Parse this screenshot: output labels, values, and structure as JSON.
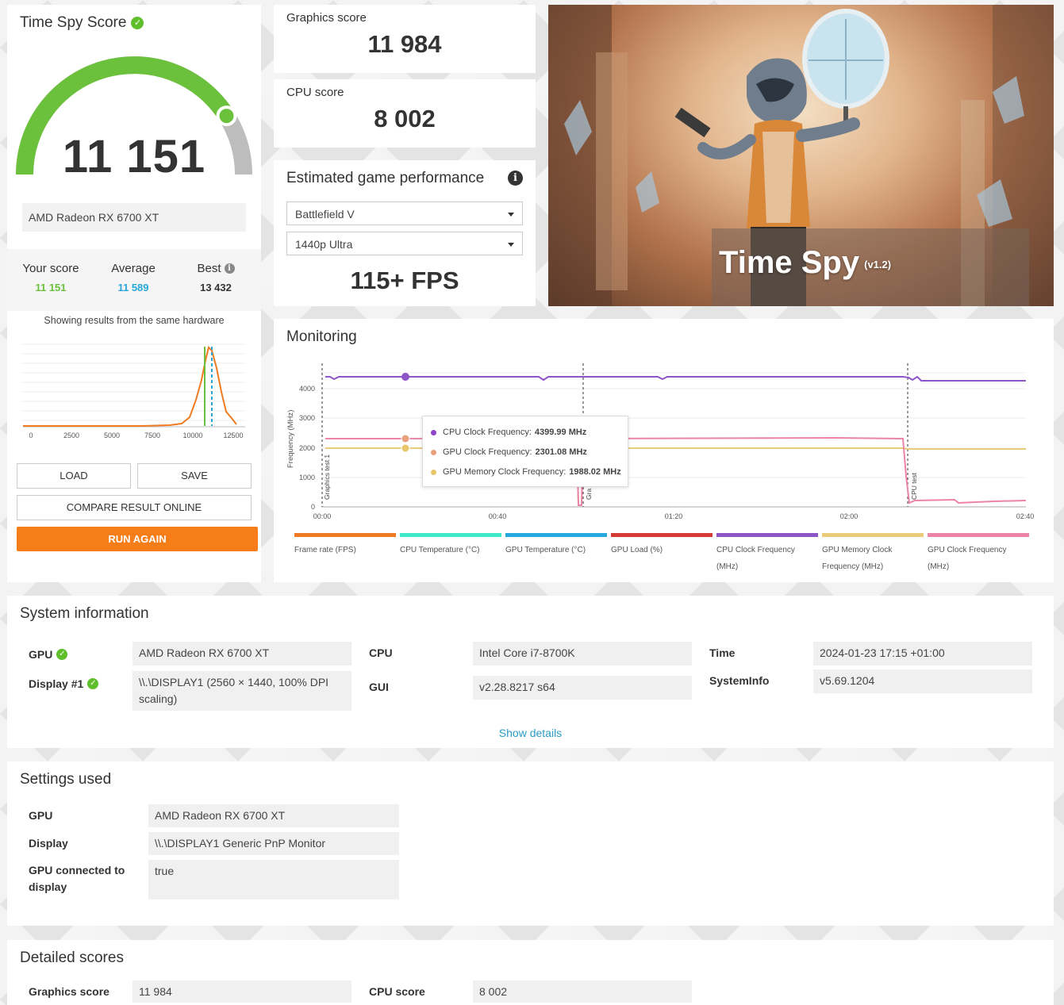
{
  "score_panel": {
    "title": "Time Spy Score",
    "score": "11 151",
    "gauge_fraction": 0.82,
    "gpu": "AMD Radeon RX 6700 XT",
    "your_score_label": "Your score",
    "your_score": "11 151",
    "average_label": "Average",
    "average": "11 589",
    "best_label": "Best",
    "best": "13 432",
    "same_hardware_text": "Showing results from the same hardware",
    "buttons": {
      "load": "LOAD",
      "save": "SAVE",
      "compare": "COMPARE RESULT ONLINE",
      "run_again": "RUN AGAIN"
    },
    "colors": {
      "green": "#6cc13c",
      "blue": "#2aa5d8",
      "orange": "#f77d19",
      "gauge_gray": "#bdbdbd"
    }
  },
  "graphics_score": {
    "label": "Graphics score",
    "value": "11 984"
  },
  "cpu_score": {
    "label": "CPU score",
    "value": "8 002"
  },
  "estimated": {
    "title": "Estimated game performance",
    "game": "Battlefield V",
    "preset": "1440p Ultra",
    "fps": "115+ FPS"
  },
  "hero": {
    "title": "Time Spy",
    "version": "(v1.2)"
  },
  "monitoring": {
    "title": "Monitoring",
    "tooltip": [
      {
        "label": "CPU Clock Frequency:",
        "value": "4399.99 MHz",
        "color": "#8e44c9"
      },
      {
        "label": "GPU Clock Frequency:",
        "value": "2301.08 MHz",
        "color": "#e8a17c"
      },
      {
        "label": "GPU Memory Clock Frequency:",
        "value": "1988.02 MHz",
        "color": "#e7c76a"
      }
    ],
    "legend": [
      {
        "label": "Frame rate (FPS)",
        "color": "#f07b22"
      },
      {
        "label": "CPU Temperature (°C)",
        "color": "#3ee8c8"
      },
      {
        "label": "GPU Temperature (°C)",
        "color": "#27a9e0"
      },
      {
        "label": "GPU Load (%)",
        "color": "#d43b35"
      },
      {
        "label": "CPU Clock Frequency (MHz)",
        "color": "#8e55c9"
      },
      {
        "label": "GPU Memory Clock Frequency (MHz)",
        "color": "#eacb78"
      },
      {
        "label": "GPU Clock Frequency (MHz)",
        "color": "#ec83a8"
      }
    ]
  },
  "monitoring_chart": {
    "ylabel": "Frequency (MHz)",
    "yticks": [
      "0",
      "1000",
      "2000",
      "3000",
      "4000"
    ],
    "xticks": [
      "00:00",
      "00:40",
      "01:20",
      "02:00",
      "02:40"
    ],
    "markers": [
      "Graphics test 1",
      "Gra",
      "CPU test"
    ]
  },
  "distribution_chart": {
    "xticks": [
      "0",
      "2500",
      "5000",
      "7500",
      "10000",
      "12500"
    ]
  },
  "system_info": {
    "title": "System information",
    "gpu_label": "GPU",
    "gpu": "AMD Radeon RX 6700 XT",
    "display_label": "Display #1",
    "display": "\\\\.\\DISPLAY1 (2560 × 1440, 100% DPI scaling)",
    "cpu_label": "CPU",
    "cpu": "Intel Core i7-8700K",
    "gui_label": "GUI",
    "gui": "v2.28.8217 s64",
    "time_label": "Time",
    "time": "2024-01-23 17:15 +01:00",
    "sysinfo_label": "SystemInfo",
    "sysinfo": "v5.69.1204",
    "show_details": "Show details"
  },
  "settings": {
    "title": "Settings used",
    "gpu_label": "GPU",
    "gpu": "AMD Radeon RX 6700 XT",
    "display_label": "Display",
    "display": "\\\\.\\DISPLAY1 Generic PnP Monitor",
    "connected_label": "GPU connected to display",
    "connected": "true"
  },
  "detailed": {
    "title": "Detailed scores",
    "graphics_label": "Graphics score",
    "graphics": "11 984",
    "cpu_label": "CPU score",
    "cpu": "8 002"
  }
}
